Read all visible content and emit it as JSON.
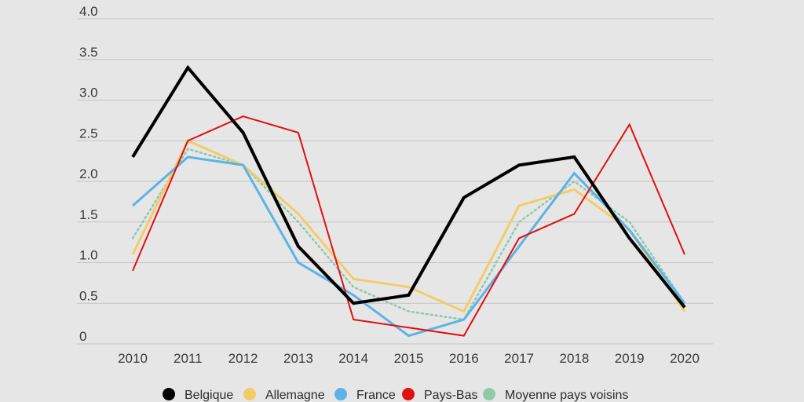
{
  "chart_data": {
    "type": "line",
    "title": "",
    "xlabel": "",
    "ylabel": "",
    "categories": [
      "2010",
      "2011",
      "2012",
      "2013",
      "2014",
      "2015",
      "2016",
      "2017",
      "2018",
      "2019",
      "2020"
    ],
    "y_ticks": [
      "0",
      "0.5",
      "1.0",
      "1.5",
      "2.0",
      "2.5",
      "3.0",
      "3.5",
      "4.0"
    ],
    "ylim": [
      0,
      4
    ],
    "grid": "horizontal",
    "legend_position": "bottom",
    "series": [
      {
        "name": "Belgique",
        "color": "#000000",
        "style": "solid-thick",
        "values": [
          2.3,
          3.4,
          2.6,
          1.2,
          0.5,
          0.6,
          1.8,
          2.2,
          2.3,
          1.3,
          0.45
        ]
      },
      {
        "name": "Allemagne",
        "color": "#f2cc6b",
        "style": "solid",
        "values": [
          1.1,
          2.5,
          2.2,
          1.6,
          0.8,
          0.7,
          0.4,
          1.7,
          1.9,
          1.4,
          0.4
        ]
      },
      {
        "name": "France",
        "color": "#5bb4e5",
        "style": "solid",
        "values": [
          1.7,
          2.3,
          2.2,
          1.0,
          0.6,
          0.1,
          0.3,
          1.2,
          2.1,
          1.4,
          0.5
        ]
      },
      {
        "name": "Pays-Bas",
        "color": "#e01010",
        "style": "solid-thin",
        "values": [
          0.9,
          2.5,
          2.8,
          2.6,
          0.3,
          0.2,
          0.1,
          1.3,
          1.6,
          2.7,
          1.1
        ]
      },
      {
        "name": "Moyenne pays voisins",
        "color": "#8fc9a8",
        "style": "dotted",
        "values": [
          1.3,
          2.4,
          2.2,
          1.5,
          0.7,
          0.4,
          0.3,
          1.5,
          2.0,
          1.5,
          0.5
        ]
      }
    ]
  }
}
